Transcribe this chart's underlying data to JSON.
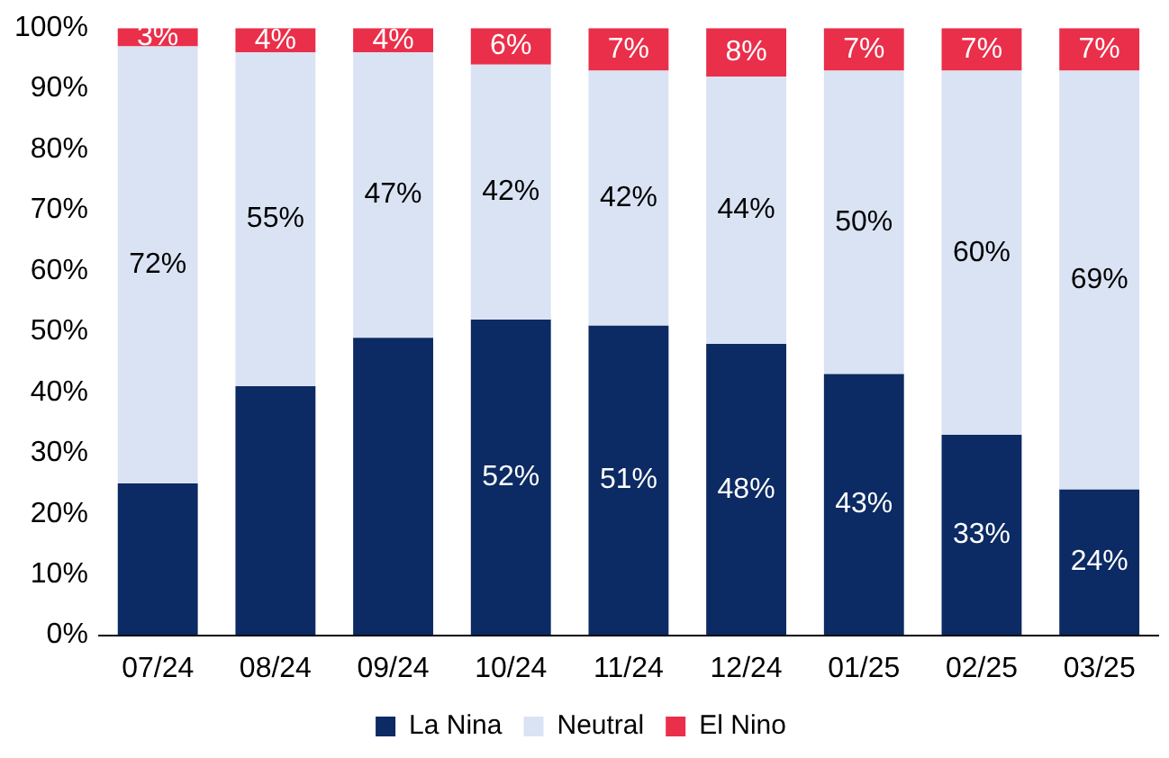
{
  "chart_data": {
    "type": "bar",
    "stacked": true,
    "categories": [
      "07/24",
      "08/24",
      "09/24",
      "10/24",
      "11/24",
      "12/24",
      "01/25",
      "02/25",
      "03/25"
    ],
    "series": [
      {
        "name": "La Nina",
        "color": "#0c2a63",
        "values": [
          25,
          41,
          49,
          52,
          51,
          48,
          43,
          33,
          24
        ],
        "value_labels": [
          null,
          null,
          null,
          "52%",
          "51%",
          "48%",
          "43%",
          "33%",
          "24%"
        ]
      },
      {
        "name": "Neutral",
        "color": "#dae3f3",
        "values": [
          72,
          55,
          47,
          42,
          42,
          44,
          50,
          60,
          69
        ],
        "value_labels": [
          "72%",
          "55%",
          "47%",
          "42%",
          "42%",
          "44%",
          "50%",
          "60%",
          "69%"
        ]
      },
      {
        "name": "El Nino",
        "color": "#ea2f4a",
        "values": [
          3,
          4,
          4,
          6,
          7,
          8,
          7,
          7,
          7
        ],
        "value_labels": [
          "3%",
          "4%",
          "4%",
          "6%",
          "7%",
          "8%",
          "7%",
          "7%",
          "7%"
        ]
      }
    ],
    "ylim": [
      0,
      100
    ],
    "yticks": [
      {
        "value": 0,
        "label": "0%"
      },
      {
        "value": 10,
        "label": "10%"
      },
      {
        "value": 20,
        "label": "20%"
      },
      {
        "value": 30,
        "label": "30%"
      },
      {
        "value": 40,
        "label": "40%"
      },
      {
        "value": 50,
        "label": "50%"
      },
      {
        "value": 60,
        "label": "60%"
      },
      {
        "value": 70,
        "label": "70%"
      },
      {
        "value": 80,
        "label": "80%"
      },
      {
        "value": 90,
        "label": "90%"
      },
      {
        "value": 100,
        "label": "100%"
      }
    ],
    "grid": false,
    "legend": "bottom"
  }
}
